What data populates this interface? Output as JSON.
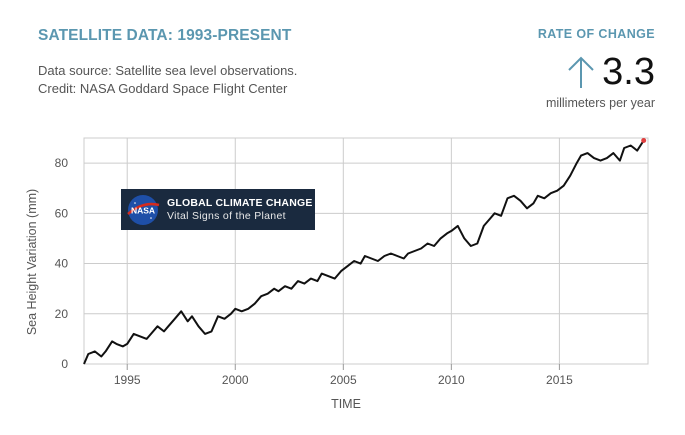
{
  "header": {
    "title": "SATELLITE DATA: 1993-PRESENT",
    "source_line1": "Data source: Satellite sea level observations.",
    "source_line2": "Credit: NASA Goddard Space Flight Center"
  },
  "rate": {
    "label": "RATE OF CHANGE",
    "value": "3.3",
    "unit": "millimeters per year",
    "arrow_icon": "up-arrow-icon"
  },
  "logo": {
    "line1": "GLOBAL CLIMATE CHANGE",
    "line2": "Vital Signs of the Planet",
    "badge_text": "NASA"
  },
  "colors": {
    "accent": "#5b97b0",
    "line": "#111111",
    "endpoint": "#e04040",
    "logo_bg": "#1a2a3f"
  },
  "chart_data": {
    "type": "line",
    "title": "",
    "xlabel": "TIME",
    "ylabel": "Sea Height Variation (mm)",
    "xlim": [
      1993,
      2019.1
    ],
    "ylim": [
      0,
      90
    ],
    "xticks": [
      1995,
      2000,
      2005,
      2010,
      2015
    ],
    "yticks": [
      0,
      20,
      40,
      60,
      80
    ],
    "grid": true,
    "series": [
      {
        "name": "",
        "x": [
          1993.0,
          1993.2,
          1993.5,
          1993.8,
          1994.0,
          1994.3,
          1994.5,
          1994.8,
          1995.0,
          1995.3,
          1995.6,
          1995.9,
          1996.1,
          1996.4,
          1996.7,
          1996.9,
          1997.2,
          1997.5,
          1997.8,
          1998.0,
          1998.3,
          1998.6,
          1998.9,
          1999.2,
          1999.5,
          1999.8,
          2000.0,
          2000.3,
          2000.6,
          2000.9,
          2001.2,
          2001.5,
          2001.8,
          2002.0,
          2002.3,
          2002.6,
          2002.9,
          2003.2,
          2003.5,
          2003.8,
          2004.0,
          2004.3,
          2004.6,
          2004.9,
          2005.2,
          2005.5,
          2005.8,
          2006.0,
          2006.3,
          2006.6,
          2006.9,
          2007.2,
          2007.5,
          2007.8,
          2008.0,
          2008.3,
          2008.6,
          2008.9,
          2009.2,
          2009.5,
          2009.8,
          2010.0,
          2010.3,
          2010.6,
          2010.9,
          2011.2,
          2011.5,
          2011.8,
          2012.0,
          2012.3,
          2012.6,
          2012.9,
          2013.2,
          2013.5,
          2013.8,
          2014.0,
          2014.3,
          2014.6,
          2014.9,
          2015.2,
          2015.5,
          2015.8,
          2016.0,
          2016.3,
          2016.6,
          2016.9,
          2017.2,
          2017.5,
          2017.8,
          2018.0,
          2018.3,
          2018.6,
          2018.9
        ],
        "values": [
          0,
          4,
          5,
          3,
          5,
          9,
          8,
          7,
          8,
          12,
          11,
          10,
          12,
          15,
          13,
          15,
          18,
          21,
          17,
          19,
          15,
          12,
          13,
          19,
          18,
          20,
          22,
          21,
          22,
          24,
          27,
          28,
          30,
          29,
          31,
          30,
          33,
          32,
          34,
          33,
          36,
          35,
          34,
          37,
          39,
          41,
          40,
          43,
          42,
          41,
          43,
          44,
          43,
          42,
          44,
          45,
          46,
          48,
          47,
          50,
          52,
          53,
          55,
          50,
          47,
          48,
          55,
          58,
          60,
          59,
          66,
          67,
          65,
          62,
          64,
          67,
          66,
          68,
          69,
          71,
          75,
          80,
          83,
          84,
          82,
          81,
          82,
          84,
          81,
          86,
          87,
          85,
          89
        ]
      }
    ]
  }
}
